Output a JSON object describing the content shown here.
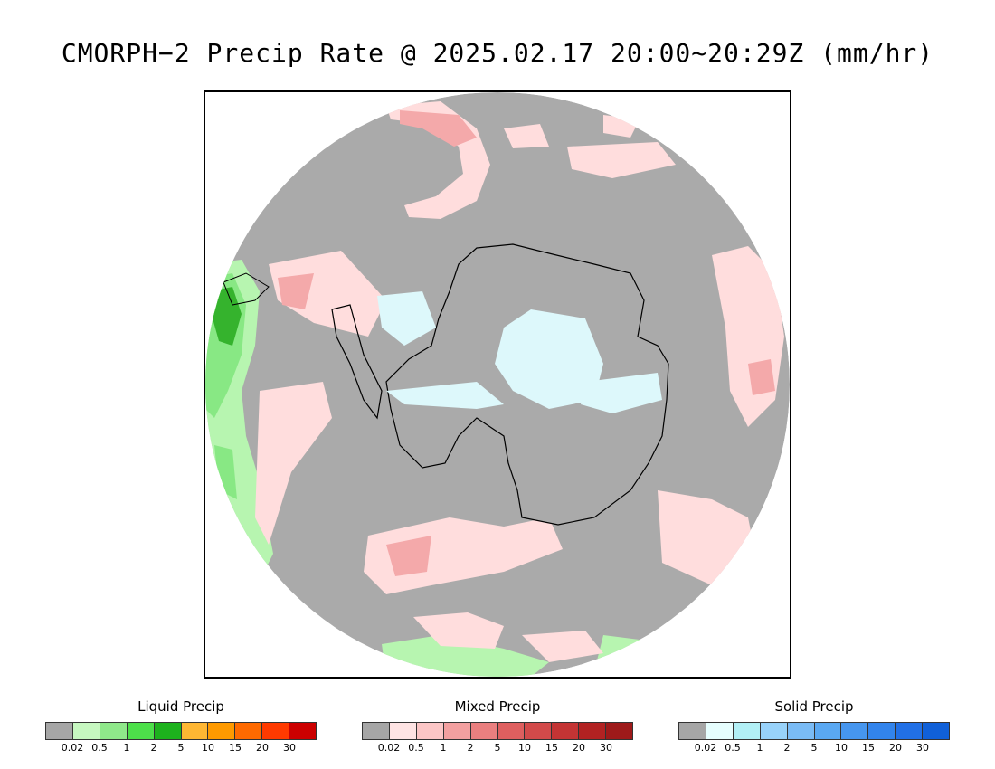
{
  "title": "CMORPH−2 Precip Rate @ 2025.02.17 20:00~20:29Z (mm/hr)",
  "map": {
    "background_color": "#aaaaaa",
    "land_outline_color": "#000000",
    "ice_color": "#ddf8fb",
    "mixed_light": "#ffdddd",
    "mixed_mid": "#f4a9aa",
    "liquid_light": "#b7f5b0",
    "liquid_mid": "#88e884",
    "liquid_dark": "#35b32d"
  },
  "legends": [
    {
      "title": "Liquid Precip",
      "colors": [
        "#a6a6a6",
        "#c6f7c0",
        "#8fe88a",
        "#4de04a",
        "#1db21d",
        "#ffb733",
        "#ff9a00",
        "#ff6a00",
        "#ff3a00",
        "#cc0000"
      ],
      "ticks": [
        "0.02",
        "0.5",
        "1",
        "2",
        "5",
        "10",
        "15",
        "20",
        "30"
      ]
    },
    {
      "title": "Mixed Precip",
      "colors": [
        "#a6a6a6",
        "#ffe4e4",
        "#fcc6c6",
        "#f3a0a0",
        "#ea7f7f",
        "#de5f5f",
        "#d24a4a",
        "#c43434",
        "#b22222",
        "#9e1a1a"
      ],
      "ticks": [
        "0.02",
        "0.5",
        "1",
        "2",
        "5",
        "10",
        "15",
        "20",
        "30"
      ]
    },
    {
      "title": "Solid Precip",
      "colors": [
        "#a6a6a6",
        "#e6fefe",
        "#b2f0f6",
        "#98d2fa",
        "#7abbf5",
        "#5aa8f2",
        "#4696ef",
        "#3284ec",
        "#2170e6",
        "#1060d8"
      ],
      "ticks": [
        "0.02",
        "0.5",
        "1",
        "2",
        "5",
        "10",
        "15",
        "20",
        "30"
      ]
    }
  ]
}
